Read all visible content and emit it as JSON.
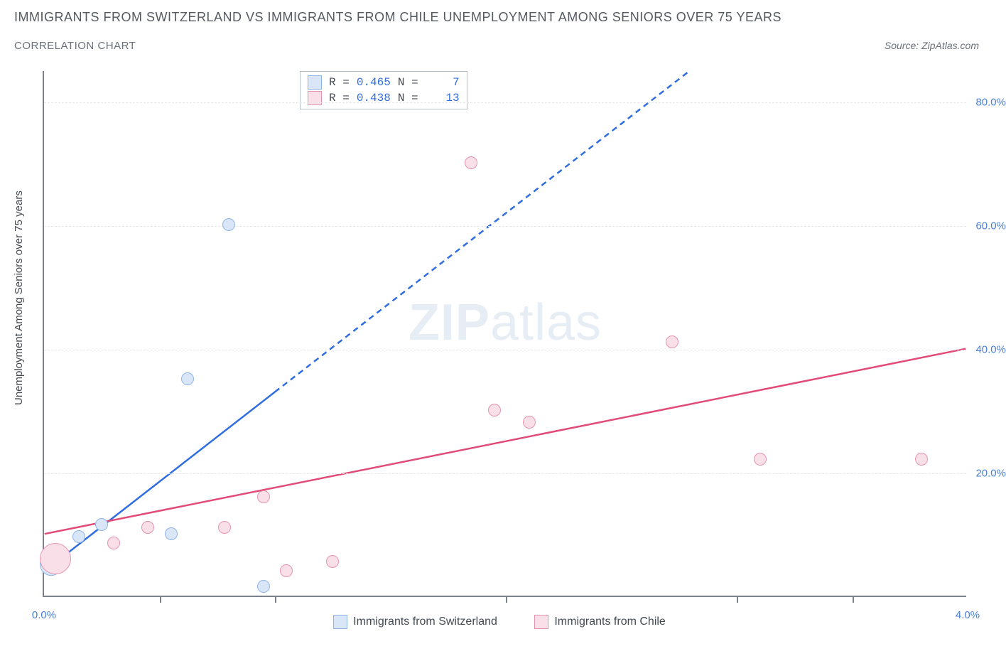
{
  "title": "IMMIGRANTS FROM SWITZERLAND VS IMMIGRANTS FROM CHILE UNEMPLOYMENT AMONG SENIORS OVER 75 YEARS",
  "subtitle": "CORRELATION CHART",
  "source_prefix": "Source: ",
  "source_name": "ZipAtlas.com",
  "watermark_bold": "ZIP",
  "watermark_light": "atlas",
  "chart": {
    "type": "scatter",
    "ylabel": "Unemployment Among Seniors over 75 years",
    "xlim": [
      0.0,
      4.0
    ],
    "ylim": [
      0.0,
      85.0
    ],
    "x_ticks": [
      0.0,
      4.0
    ],
    "x_tick_labels": [
      "0.0%",
      "4.0%"
    ],
    "x_minor_ticks": [
      0.5,
      1.0,
      2.0,
      3.0,
      3.5
    ],
    "y_gridlines": [
      20.0,
      40.0,
      60.0,
      80.0
    ],
    "y_tick_labels": [
      "20.0%",
      "40.0%",
      "60.0%",
      "80.0%"
    ],
    "grid_color": "#e5e7ea",
    "axis_color": "#7b818a",
    "background_color": "#ffffff",
    "tick_label_color": "#4a7fd6",
    "series": [
      {
        "name": "Immigrants from Switzerland",
        "short": "switzerland",
        "fill": "#d8e6f7",
        "stroke": "#8fb5e6",
        "trend_color": "#2f6de0",
        "R": "0.465",
        "N": "7",
        "trend": {
          "x1": 0.0,
          "y1": 4.0,
          "x2": 1.0,
          "y2": 33.0,
          "dash_after_x": 1.0,
          "x3": 2.8,
          "y3": 85.0
        },
        "points": [
          {
            "x": 0.03,
            "y": 5.0,
            "r": 16
          },
          {
            "x": 0.15,
            "y": 9.5,
            "r": 9
          },
          {
            "x": 0.25,
            "y": 11.5,
            "r": 9
          },
          {
            "x": 0.55,
            "y": 10.0,
            "r": 9
          },
          {
            "x": 0.62,
            "y": 35.0,
            "r": 9
          },
          {
            "x": 0.8,
            "y": 60.0,
            "r": 9
          },
          {
            "x": 0.95,
            "y": 1.5,
            "r": 9
          }
        ]
      },
      {
        "name": "Immigrants from Chile",
        "short": "chile",
        "fill": "#f9e0e8",
        "stroke": "#e693ae",
        "trend_color": "#e24a78",
        "R": "0.438",
        "N": "13",
        "trend": {
          "x1": 0.0,
          "y1": 10.0,
          "x2": 4.0,
          "y2": 40.0
        },
        "points": [
          {
            "x": 0.05,
            "y": 6.0,
            "r": 22
          },
          {
            "x": 0.3,
            "y": 8.5,
            "r": 9
          },
          {
            "x": 0.45,
            "y": 11.0,
            "r": 9
          },
          {
            "x": 0.78,
            "y": 11.0,
            "r": 9
          },
          {
            "x": 0.95,
            "y": 16.0,
            "r": 9
          },
          {
            "x": 1.05,
            "y": 4.0,
            "r": 9
          },
          {
            "x": 1.25,
            "y": 5.5,
            "r": 9
          },
          {
            "x": 1.95,
            "y": 30.0,
            "r": 9
          },
          {
            "x": 1.85,
            "y": 70.0,
            "r": 9
          },
          {
            "x": 2.1,
            "y": 28.0,
            "r": 9
          },
          {
            "x": 2.72,
            "y": 41.0,
            "r": 9
          },
          {
            "x": 3.1,
            "y": 22.0,
            "r": 9
          },
          {
            "x": 3.8,
            "y": 22.0,
            "r": 9
          }
        ]
      }
    ]
  },
  "legend_top": {
    "r_label": "R =",
    "n_label": "N ="
  }
}
